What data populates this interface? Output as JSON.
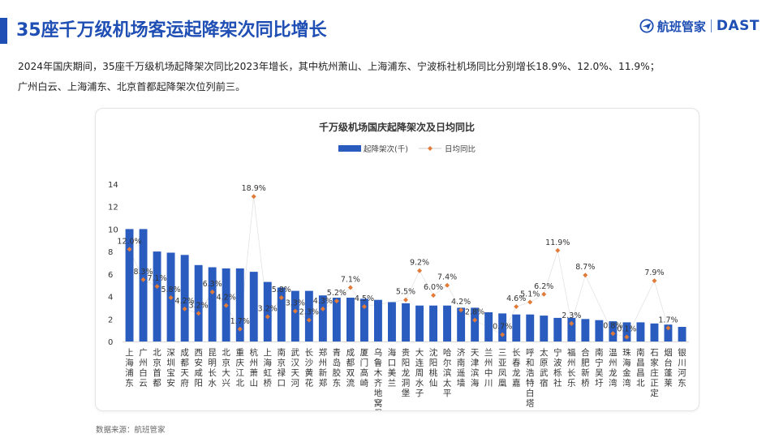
{
  "header": {
    "title": "35座千万级机场客运起降架次同比增长",
    "brand_cn": "航班管家",
    "brand_en": "DAST",
    "brand_icon": "plane-logo-icon"
  },
  "summary": {
    "line1": "2024年国庆期间，35座千万级机场起降架次同比2023年增长，其中杭州萧山、上海浦东、宁波栎社机场同比分别增长18.9%、12.0%、11.9%；",
    "line2": "广州白云、上海浦东、北京首都起降架次位列前三。"
  },
  "source": "数据来源：航班管家",
  "colors": {
    "brand_blue": "#1f4fb4",
    "bar_blue": "#2a5cbf",
    "marker_orange": "#e07b39",
    "axis_gray": "#d9d9d9"
  },
  "chart_data": {
    "type": "bar",
    "title": "千万级机场国庆起降架次及日均同比",
    "legend_position": "top-center",
    "grid": false,
    "ylim": [
      0,
      14
    ],
    "yticks": [
      "0",
      "2",
      "4",
      "6",
      "8",
      "10",
      "12",
      "14"
    ],
    "categories": [
      "上海浦东",
      "广州白云",
      "北京首都",
      "深圳宝安",
      "成都天府",
      "西安咸阳",
      "昆明长水",
      "北京大兴",
      "重庆江北",
      "杭州萧山",
      "上海虹桥",
      "南京禄口",
      "武汉天河",
      "长沙黄花",
      "郑州新郑",
      "青岛胶东",
      "成都双流",
      "厦门高崎",
      "乌鲁木齐地窝堡",
      "海口美兰",
      "贵阳龙洞堡",
      "大连周水子",
      "沈阳桃仙",
      "哈尔滨太平",
      "济南遥墙",
      "天津滨海",
      "兰州中川",
      "三亚凤凰",
      "长春龙嘉",
      "呼和浩特白塔",
      "太原武宿",
      "宁波栎社",
      "福州长乐",
      "合肥新桥",
      "南宁吴圩",
      "温州龙湾",
      "珠海金湾",
      "南昌昌北",
      "石家庄正定",
      "烟台蓬莱",
      "银川河东"
    ],
    "series": [
      {
        "name": "起降架次(千)",
        "type": "bar",
        "values": [
          10.0,
          10.0,
          8.0,
          7.9,
          7.7,
          6.8,
          6.6,
          6.5,
          6.5,
          6.2,
          5.3,
          4.8,
          4.5,
          4.5,
          4.1,
          3.9,
          3.9,
          3.8,
          3.7,
          3.5,
          3.4,
          3.2,
          3.2,
          3.2,
          3.0,
          3.0,
          2.6,
          2.5,
          2.4,
          2.4,
          2.3,
          2.1,
          2.1,
          2.0,
          1.9,
          1.8,
          1.7,
          1.7,
          1.6,
          1.5,
          1.3
        ]
      },
      {
        "name": "日均同比",
        "type": "scatter",
        "labels": [
          "12.0%",
          "8.3%",
          "7.1%",
          "5.8%",
          "4.2%",
          "3.2%",
          "6.3%",
          "4.2%",
          "1.7%",
          "18.9%",
          "3.2%",
          "5.8%",
          "3.3%",
          "2.3%",
          "4.3%",
          "5.2%",
          "7.1%",
          "4.5%",
          "",
          "",
          "5.5%",
          "9.2%",
          "6.0%",
          "7.4%",
          "4.2%",
          "2.8%",
          "",
          "0.7%",
          "4.6%",
          "5.1%",
          "6.2%",
          "11.9%",
          "2.3%",
          "8.7%",
          "",
          "0.8%",
          "0.1%",
          "",
          "7.9%",
          "1.7%",
          ""
        ],
        "values": [
          8.2,
          5.5,
          4.9,
          3.9,
          2.9,
          2.5,
          4.4,
          3.2,
          1.1,
          12.9,
          2.2,
          3.9,
          2.7,
          1.9,
          2.9,
          3.6,
          4.8,
          3.1,
          null,
          null,
          3.7,
          6.3,
          4.1,
          5.0,
          2.8,
          1.9,
          null,
          0.6,
          3.1,
          3.5,
          4.2,
          8.1,
          1.6,
          5.9,
          null,
          0.7,
          0.4,
          null,
          5.4,
          1.2,
          null
        ]
      }
    ]
  }
}
